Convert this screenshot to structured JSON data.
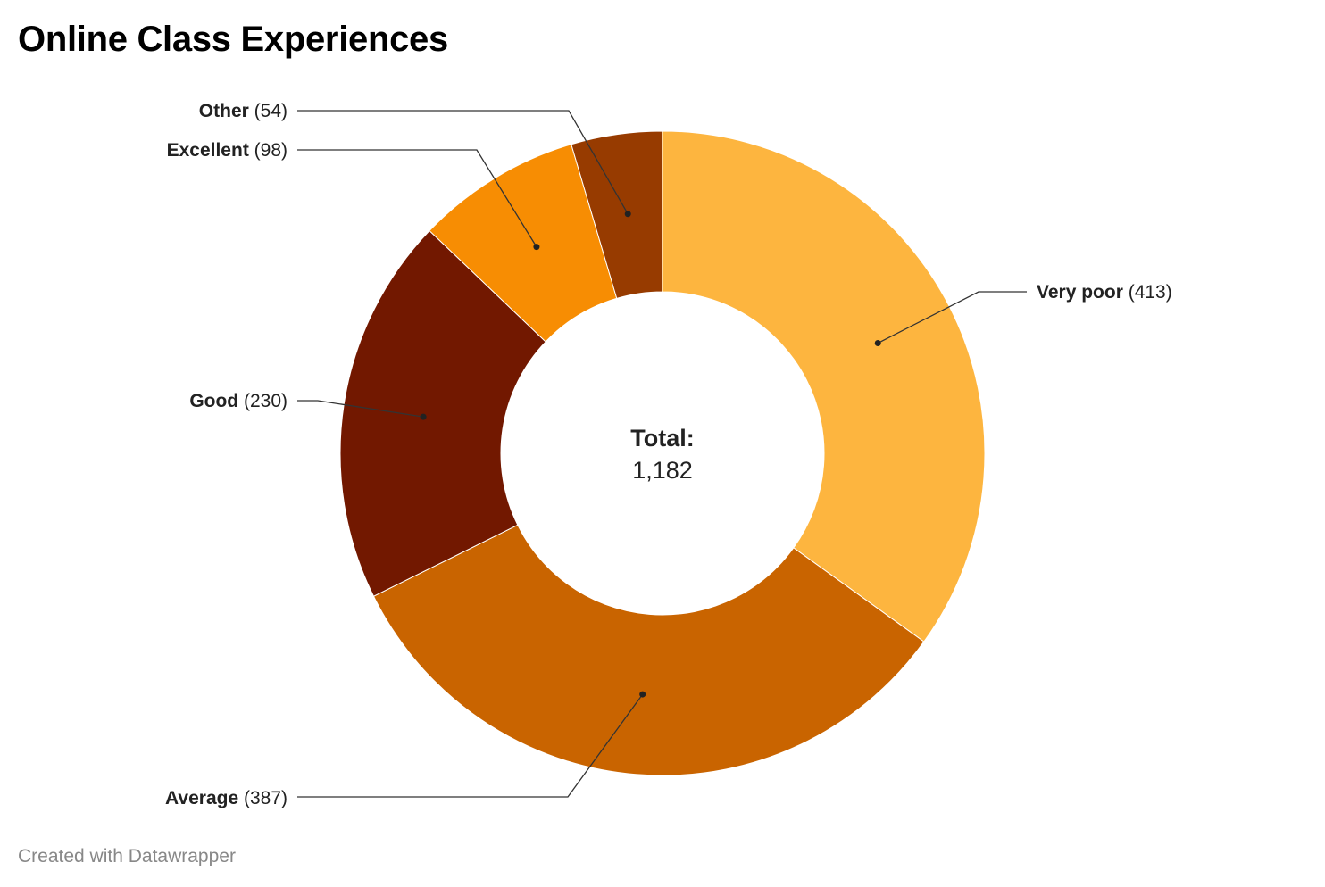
{
  "chart_data": {
    "type": "pie",
    "title": "Online Class Experiences",
    "categories": [
      "Very poor",
      "Average",
      "Good",
      "Excellent",
      "Other"
    ],
    "values": [
      413,
      387,
      230,
      98,
      54
    ],
    "labels": [
      "(413)",
      "(387)",
      "(230)",
      "(98)",
      "(54)"
    ],
    "colors": [
      "#FDB53F",
      "#C96400",
      "#721800",
      "#F78D03",
      "#973B00"
    ],
    "center_label": "Total:",
    "center_value": "1,182",
    "donut": true
  },
  "footer": "Created with Datawrapper"
}
